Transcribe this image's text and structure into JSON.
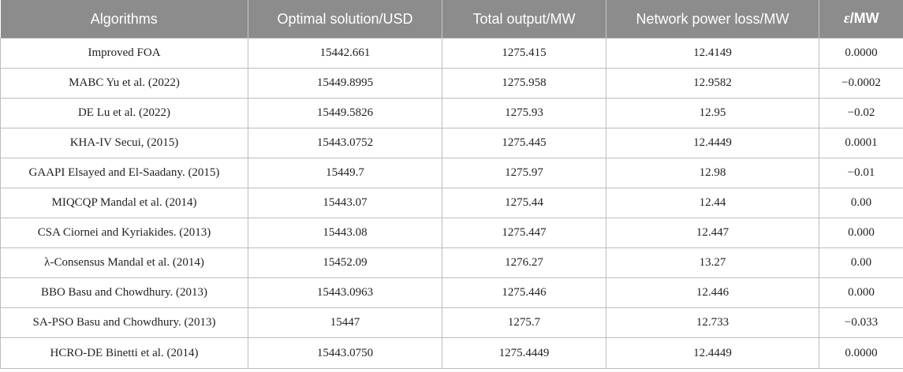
{
  "table": {
    "headers": {
      "algorithms": "Algorithms",
      "optimal": "Optimal solution/USD",
      "total_output": "Total output/MW",
      "loss": "Network power loss/MW",
      "eps_symbol": "ε",
      "eps_unit": "/MW"
    },
    "rows": [
      {
        "algorithm": "Improved FOA",
        "optimal": "15442.661",
        "total_output": "1275.415",
        "loss": "12.4149",
        "eps": "0.0000"
      },
      {
        "algorithm": "MABC Yu et al. (2022)",
        "optimal": "15449.8995",
        "total_output": "1275.958",
        "loss": "12.9582",
        "eps": "−0.0002"
      },
      {
        "algorithm": "DE Lu et al. (2022)",
        "optimal": "15449.5826",
        "total_output": "1275.93",
        "loss": "12.95",
        "eps": "−0.02"
      },
      {
        "algorithm": "KHA-IV Secui, (2015)",
        "optimal": "15443.0752",
        "total_output": "1275.445",
        "loss": "12.4449",
        "eps": "0.0001"
      },
      {
        "algorithm": "GAAPI Elsayed and El-Saadany. (2015)",
        "optimal": "15449.7",
        "total_output": "1275.97",
        "loss": "12.98",
        "eps": "−0.01"
      },
      {
        "algorithm": "MIQCQP Mandal et al. (2014)",
        "optimal": "15443.07",
        "total_output": "1275.44",
        "loss": "12.44",
        "eps": "0.00"
      },
      {
        "algorithm": "CSA Ciornei and Kyriakides. (2013)",
        "optimal": "15443.08",
        "total_output": "1275.447",
        "loss": "12.447",
        "eps": "0.000"
      },
      {
        "algorithm": "λ-Consensus Mandal et al. (2014)",
        "optimal": "15452.09",
        "total_output": "1276.27",
        "loss": "13.27",
        "eps": "0.00"
      },
      {
        "algorithm": "BBO Basu and Chowdhury. (2013)",
        "optimal": "15443.0963",
        "total_output": "1275.446",
        "loss": "12.446",
        "eps": "0.000"
      },
      {
        "algorithm": "SA-PSO Basu and Chowdhury. (2013)",
        "optimal": "15447",
        "total_output": "1275.7",
        "loss": "12.733",
        "eps": "−0.033"
      },
      {
        "algorithm": "HCRO-DE Binetti et al. (2014)",
        "optimal": "15443.0750",
        "total_output": "1275.4449",
        "loss": "12.4449",
        "eps": "0.0000"
      }
    ]
  },
  "colors": {
    "header_background": "#8c8c8c",
    "header_text": "#ffffff",
    "grid_lines": "#bdbdbd",
    "body_text": "#222222"
  }
}
